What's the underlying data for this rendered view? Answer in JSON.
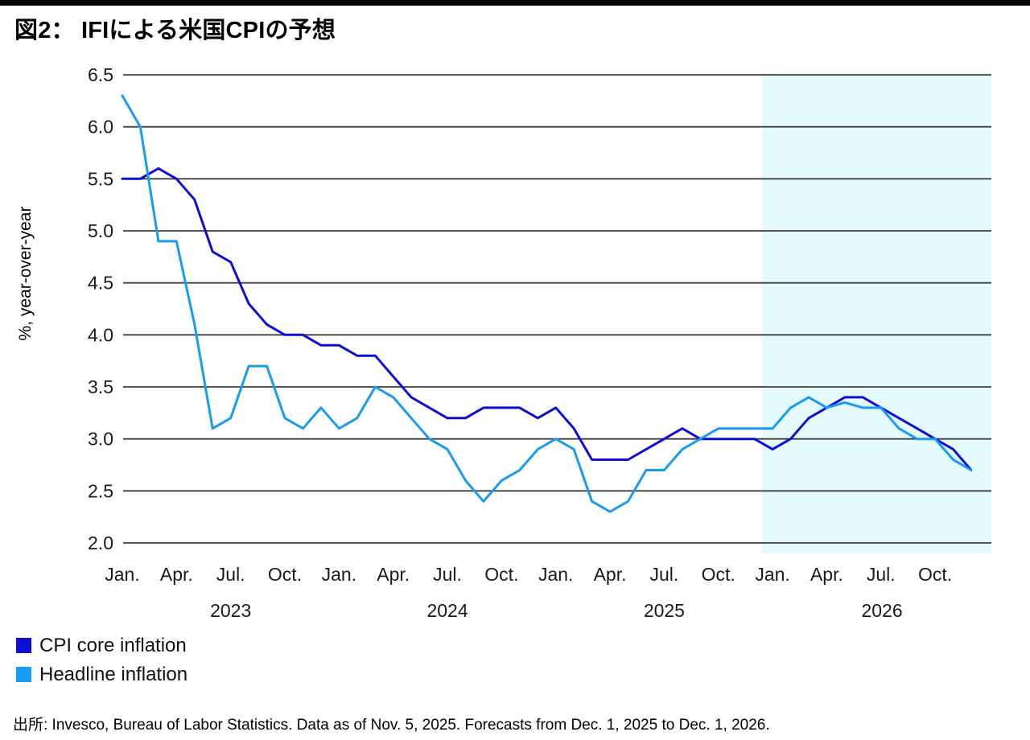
{
  "title": "図2： IFIによる米国CPIの予想",
  "legend": {
    "items": [
      {
        "label": "CPI core inflation",
        "color": "#0D0FD4"
      },
      {
        "label": "Headline inflation",
        "color": "#189BF2"
      }
    ]
  },
  "footer": "出所: Invesco, Bureau of Labor Statistics. Data as of Nov. 5, 2025. Forecasts from Dec. 1, 2025 to Dec. 1, 2026.",
  "chart_data": {
    "type": "line",
    "title": "図2： IFIによる米国CPIの予想",
    "ylabel": "%, year-over-year",
    "ylim": [
      2.0,
      6.5
    ],
    "ytick_step": 0.5,
    "y_tick_labels": [
      "6.5",
      "6.0",
      "5.5",
      "5.0",
      "4.5",
      "4.0",
      "3.5",
      "3.0",
      "2.5",
      "2.0"
    ],
    "grid": "horizontal",
    "legend_position": "bottom-left",
    "quarter_tick_labels": [
      "Jan.",
      "Apr.",
      "Jul.",
      "Oct."
    ],
    "year_labels": [
      "2023",
      "2024",
      "2025",
      "2026"
    ],
    "x": [
      "2023-01",
      "2023-02",
      "2023-03",
      "2023-04",
      "2023-05",
      "2023-06",
      "2023-07",
      "2023-08",
      "2023-09",
      "2023-10",
      "2023-11",
      "2023-12",
      "2024-01",
      "2024-02",
      "2024-03",
      "2024-04",
      "2024-05",
      "2024-06",
      "2024-07",
      "2024-08",
      "2024-09",
      "2024-10",
      "2024-11",
      "2024-12",
      "2025-01",
      "2025-02",
      "2025-03",
      "2025-04",
      "2025-05",
      "2025-06",
      "2025-07",
      "2025-08",
      "2025-09",
      "2025-10",
      "2025-11",
      "2025-12",
      "2026-01",
      "2026-02",
      "2026-03",
      "2026-04",
      "2026-05",
      "2026-06",
      "2026-07",
      "2026-08",
      "2026-09",
      "2026-10",
      "2026-11",
      "2026-12"
    ],
    "series": [
      {
        "name": "CPI core inflation",
        "color": "#0D0FD4",
        "values": [
          5.5,
          5.5,
          5.6,
          5.5,
          5.3,
          4.8,
          4.7,
          4.3,
          4.1,
          4.0,
          4.0,
          3.9,
          3.9,
          3.8,
          3.8,
          3.6,
          3.4,
          3.3,
          3.2,
          3.2,
          3.3,
          3.3,
          3.3,
          3.2,
          3.3,
          3.1,
          2.8,
          2.8,
          2.8,
          2.9,
          3.0,
          3.1,
          3.0,
          3.0,
          3.0,
          3.0,
          2.9,
          3.0,
          3.2,
          3.3,
          3.4,
          3.4,
          3.3,
          3.2,
          3.1,
          3.0,
          2.9,
          2.7
        ]
      },
      {
        "name": "Headline inflation",
        "color": "#189BF2",
        "values": [
          6.3,
          6.0,
          4.9,
          4.9,
          4.1,
          3.1,
          3.2,
          3.7,
          3.7,
          3.2,
          3.1,
          3.3,
          3.1,
          3.2,
          3.5,
          3.4,
          3.2,
          3.0,
          2.9,
          2.6,
          2.4,
          2.6,
          2.7,
          2.9,
          3.0,
          2.9,
          2.4,
          2.3,
          2.4,
          2.7,
          2.7,
          2.9,
          3.0,
          3.1,
          3.1,
          3.1,
          3.1,
          3.3,
          3.4,
          3.3,
          3.35,
          3.3,
          3.3,
          3.1,
          3.0,
          3.0,
          2.8,
          2.7
        ]
      }
    ],
    "forecast_region": {
      "start": "2025-12",
      "end": "2026-12",
      "fill": "#E4FAFD",
      "note": "Forecasts from Dec. 1, 2025 to Dec. 1, 2026."
    }
  }
}
